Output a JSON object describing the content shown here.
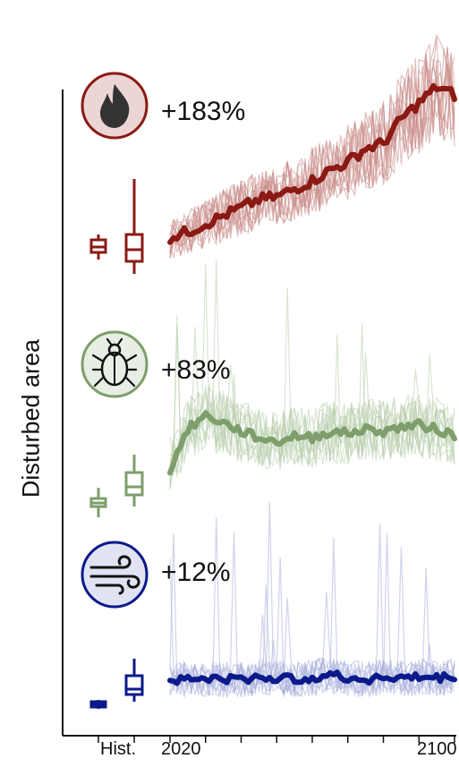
{
  "chart_data": {
    "type": "line",
    "ylabel": "Disturbed area",
    "x_tick_labels": [
      "Hist.",
      "2020",
      "2100"
    ],
    "xlim": [
      2020,
      2100
    ],
    "grid": false,
    "legend": "none",
    "panels": [
      {
        "name": "fire",
        "icon": "fire-icon",
        "change_label": "+183%",
        "color": "#8b1a14",
        "light_color": "#c98a86",
        "boxplots": {
          "historical": {
            "whisker_low": 0.2,
            "q1": 0.28,
            "median": 0.34,
            "q3": 0.42,
            "whisker_high": 0.48
          },
          "future": {
            "whisker_low": 0.04,
            "q1": 0.18,
            "median": 0.31,
            "q3": 0.48,
            "whisker_high": 1.1
          }
        },
        "series_mean": {
          "x": [
            2020,
            2025,
            2030,
            2035,
            2040,
            2045,
            2050,
            2055,
            2060,
            2065,
            2070,
            2075,
            2080,
            2085,
            2090,
            2095,
            2100
          ],
          "y": [
            0.3,
            0.34,
            0.4,
            0.46,
            0.52,
            0.58,
            0.6,
            0.66,
            0.72,
            0.8,
            0.86,
            0.96,
            1.0,
            1.18,
            1.3,
            1.42,
            1.36
          ]
        }
      },
      {
        "name": "bark beetle",
        "icon": "beetle-icon",
        "change_label": "+83%",
        "color": "#7e9e6c",
        "light_color": "#b9cfae",
        "boxplots": {
          "historical": {
            "whisker_low": 0.12,
            "q1": 0.24,
            "median": 0.28,
            "q3": 0.33,
            "whisker_high": 0.45
          },
          "future": {
            "whisker_low": 0.24,
            "q1": 0.37,
            "median": 0.46,
            "q3": 0.62,
            "whisker_high": 0.82
          }
        },
        "series_mean": {
          "x": [
            2020,
            2025,
            2030,
            2035,
            2040,
            2045,
            2050,
            2055,
            2060,
            2065,
            2070,
            2075,
            2080,
            2085,
            2090,
            2095,
            2100
          ],
          "y": [
            0.55,
            0.92,
            1.05,
            0.98,
            0.9,
            0.84,
            0.8,
            0.86,
            0.84,
            0.9,
            0.88,
            0.92,
            0.9,
            0.94,
            0.96,
            0.92,
            0.86
          ]
        }
      },
      {
        "name": "wind",
        "icon": "wind-icon",
        "change_label": "+12%",
        "color": "#0b1a8a",
        "light_color": "#aab0dc",
        "boxplots": {
          "historical": {
            "whisker_low": 0.08,
            "q1": 0.1,
            "median": 0.13,
            "q3": 0.16,
            "whisker_high": 0.18
          },
          "future": {
            "whisker_low": 0.16,
            "q1": 0.24,
            "median": 0.3,
            "q3": 0.45,
            "whisker_high": 0.64
          }
        },
        "series_mean": {
          "x": [
            2020,
            2025,
            2030,
            2035,
            2040,
            2045,
            2050,
            2055,
            2060,
            2065,
            2070,
            2075,
            2080,
            2085,
            2090,
            2095,
            2100
          ],
          "y": [
            0.34,
            0.34,
            0.35,
            0.34,
            0.34,
            0.36,
            0.35,
            0.34,
            0.36,
            0.38,
            0.35,
            0.34,
            0.36,
            0.35,
            0.36,
            0.35,
            0.37
          ]
        }
      }
    ]
  }
}
